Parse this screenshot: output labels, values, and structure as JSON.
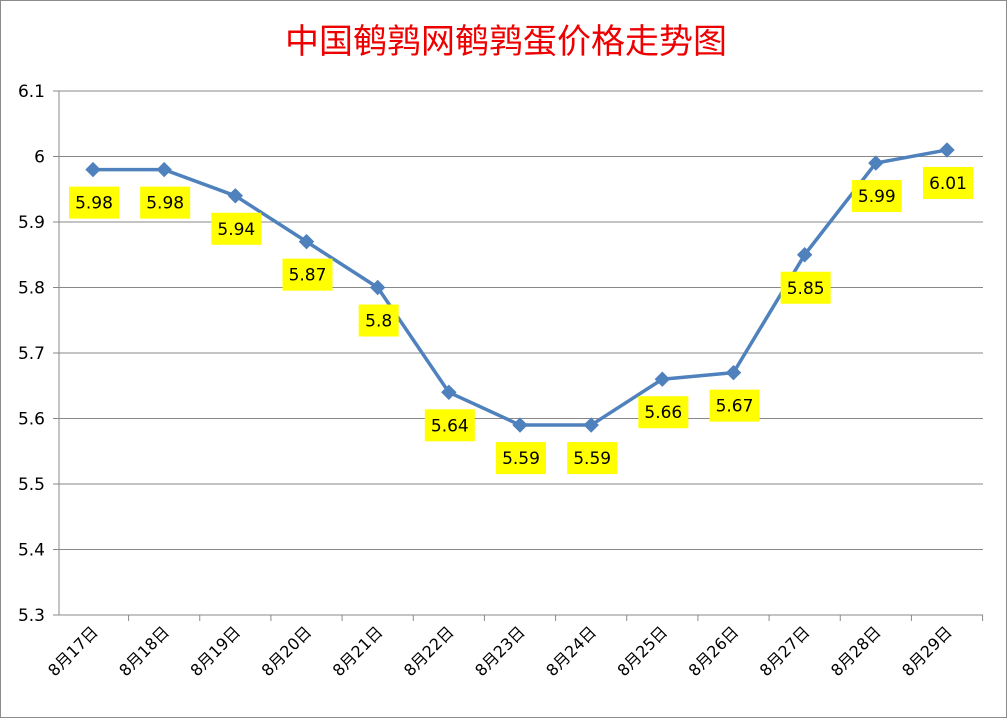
{
  "chart_data": {
    "type": "line",
    "title": "中国鹌鹑网鹌鹑蛋价格走势图",
    "xlabel": "",
    "ylabel": "",
    "categories": [
      "8月17日",
      "8月18日",
      "8月19日",
      "8月20日",
      "8月21日",
      "8月22日",
      "8月23日",
      "8月24日",
      "8月25日",
      "8月26日",
      "8月27日",
      "8月28日",
      "8月29日"
    ],
    "series": [
      {
        "values": [
          5.98,
          5.98,
          5.94,
          5.87,
          5.8,
          5.64,
          5.59,
          5.59,
          5.66,
          5.67,
          5.85,
          5.99,
          6.01
        ],
        "data_labels": [
          "5.98",
          "5.98",
          "5.94",
          "5.87",
          "5.8",
          "5.64",
          "5.59",
          "5.59",
          "5.66",
          "5.67",
          "5.85",
          "5.99",
          "6.01"
        ],
        "color": "#4f81bd",
        "marker": "diamond"
      }
    ],
    "ylim": [
      5.3,
      6.1
    ],
    "yticks": [
      "5.3",
      "5.4",
      "5.5",
      "5.6",
      "5.7",
      "5.8",
      "5.9",
      "6",
      "6.1"
    ],
    "grid": true,
    "legend": "none",
    "colors": {
      "title": "#ee0000",
      "line": "#4f81bd",
      "label_background": "#ffff00",
      "gridline": "#888888"
    }
  }
}
